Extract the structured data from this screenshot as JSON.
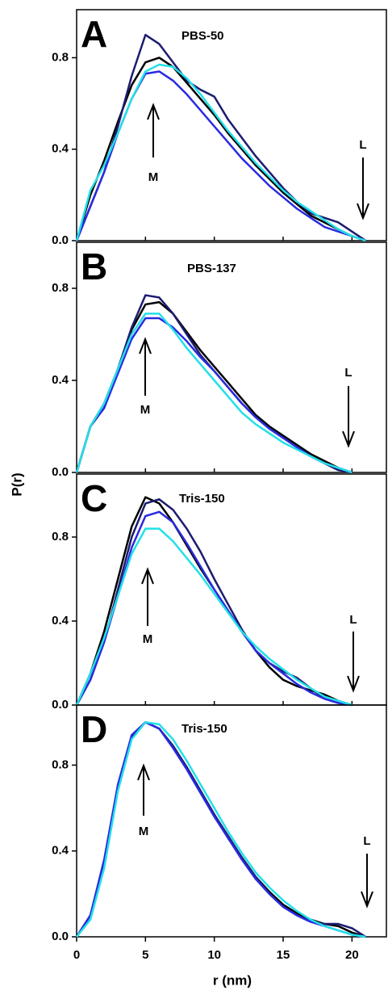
{
  "x_label": "r (nm)",
  "y_label": "P(r)",
  "chart_data": [
    {
      "type": "line",
      "panel": "A",
      "title": "PBS-50",
      "annotations": [
        "M",
        "L"
      ],
      "xlim": [
        0,
        22.5
      ],
      "xticks": [
        0,
        5,
        10,
        15,
        20
      ],
      "ylim": [
        0,
        1.01
      ],
      "yticks": [
        {
          "value": 0,
          "label": "0.0"
        },
        0.4,
        0.8
      ],
      "x": [
        0,
        1,
        2,
        3,
        4,
        5,
        6,
        7,
        8,
        9,
        10,
        11,
        12,
        13,
        14,
        15,
        16,
        17,
        18,
        19,
        20,
        21
      ],
      "series": [
        {
          "color": "#000000",
          "values": [
            0,
            0.2,
            0.35,
            0.52,
            0.68,
            0.78,
            0.8,
            0.76,
            0.69,
            0.62,
            0.55,
            0.47,
            0.4,
            0.33,
            0.27,
            0.21,
            0.16,
            0.11,
            0.08,
            0.05,
            0.02,
            0
          ]
        },
        {
          "color": "#1c1c70",
          "values": [
            0,
            0.15,
            0.3,
            0.5,
            0.72,
            0.9,
            0.86,
            0.78,
            0.7,
            0.66,
            0.63,
            0.53,
            0.45,
            0.37,
            0.3,
            0.23,
            0.17,
            0.12,
            0.1,
            0.08,
            0.04,
            0
          ]
        },
        {
          "color": "#2a2ae0",
          "values": [
            0,
            0.15,
            0.3,
            0.47,
            0.62,
            0.73,
            0.74,
            0.7,
            0.64,
            0.57,
            0.5,
            0.43,
            0.36,
            0.3,
            0.24,
            0.19,
            0.14,
            0.1,
            0.06,
            0.04,
            0.02,
            0
          ]
        },
        {
          "color": "#22e0e8",
          "values": [
            0,
            0.22,
            0.33,
            0.47,
            0.62,
            0.74,
            0.77,
            0.76,
            0.71,
            0.64,
            0.56,
            0.48,
            0.41,
            0.34,
            0.28,
            0.22,
            0.17,
            0.13,
            0.09,
            0.05,
            0.02,
            0
          ]
        }
      ]
    },
    {
      "type": "line",
      "panel": "B",
      "title": "PBS-137",
      "annotations": [
        "M",
        "L"
      ],
      "xlim": [
        0,
        22.5
      ],
      "xticks": [
        0,
        5,
        10,
        15,
        20
      ],
      "ylim": [
        0,
        1.0
      ],
      "yticks": [
        {
          "value": 0,
          "label": "0.0"
        },
        0.4,
        0.8
      ],
      "x": [
        0,
        1,
        2,
        3,
        4,
        5,
        6,
        7,
        8,
        9,
        10,
        11,
        12,
        13,
        14,
        15,
        16,
        17,
        18,
        19,
        20
      ],
      "series": [
        {
          "color": "#000000",
          "values": [
            0,
            0.2,
            0.3,
            0.45,
            0.62,
            0.73,
            0.74,
            0.69,
            0.61,
            0.53,
            0.46,
            0.39,
            0.32,
            0.25,
            0.2,
            0.16,
            0.12,
            0.08,
            0.05,
            0.02,
            0
          ]
        },
        {
          "color": "#1c1c70",
          "values": [
            0,
            0.2,
            0.28,
            0.45,
            0.63,
            0.77,
            0.76,
            0.69,
            0.6,
            0.51,
            0.44,
            0.37,
            0.3,
            0.24,
            0.19,
            0.15,
            0.11,
            0.07,
            0.04,
            0.01,
            0
          ]
        },
        {
          "color": "#2a2ae0",
          "values": [
            0,
            0.2,
            0.28,
            0.43,
            0.58,
            0.67,
            0.67,
            0.63,
            0.57,
            0.5,
            0.44,
            0.37,
            0.3,
            0.24,
            0.19,
            0.15,
            0.11,
            0.07,
            0.04,
            0.02,
            0
          ]
        },
        {
          "color": "#22e0e8",
          "values": [
            0,
            0.2,
            0.3,
            0.45,
            0.6,
            0.69,
            0.69,
            0.62,
            0.54,
            0.47,
            0.4,
            0.33,
            0.26,
            0.21,
            0.17,
            0.13,
            0.1,
            0.07,
            0.04,
            0.02,
            0
          ]
        }
      ]
    },
    {
      "type": "line",
      "panel": "C",
      "title": "Tris-150",
      "annotations": [
        "M",
        "L"
      ],
      "xlim": [
        0,
        22.5
      ],
      "xticks": [
        0,
        5,
        10,
        15,
        20
      ],
      "ylim": [
        0,
        1.1
      ],
      "yticks": [
        {
          "value": 0,
          "label": "0.0"
        },
        0.4,
        0.8
      ],
      "x": [
        0,
        1,
        2,
        3,
        4,
        5,
        6,
        7,
        8,
        9,
        10,
        11,
        12,
        13,
        14,
        15,
        16,
        17,
        18,
        19,
        20
      ],
      "series": [
        {
          "color": "#000000",
          "values": [
            0,
            0.15,
            0.35,
            0.6,
            0.85,
            0.99,
            0.96,
            0.87,
            0.76,
            0.65,
            0.55,
            0.45,
            0.35,
            0.26,
            0.18,
            0.12,
            0.09,
            0.07,
            0.05,
            0.02,
            0
          ]
        },
        {
          "color": "#1c1c70",
          "values": [
            0,
            0.12,
            0.3,
            0.55,
            0.8,
            0.96,
            0.98,
            0.93,
            0.84,
            0.73,
            0.6,
            0.48,
            0.36,
            0.26,
            0.2,
            0.16,
            0.13,
            0.08,
            0.03,
            0.01,
            0
          ]
        },
        {
          "color": "#2a2ae0",
          "values": [
            0,
            0.12,
            0.3,
            0.52,
            0.75,
            0.9,
            0.92,
            0.87,
            0.77,
            0.66,
            0.55,
            0.45,
            0.35,
            0.26,
            0.2,
            0.15,
            0.1,
            0.06,
            0.03,
            0.01,
            0
          ]
        },
        {
          "color": "#22e0e8",
          "values": [
            0,
            0.15,
            0.32,
            0.52,
            0.72,
            0.84,
            0.84,
            0.78,
            0.7,
            0.62,
            0.53,
            0.44,
            0.35,
            0.28,
            0.22,
            0.17,
            0.12,
            0.08,
            0.04,
            0.02,
            0
          ]
        }
      ]
    },
    {
      "type": "line",
      "panel": "D",
      "title": "Tris-150",
      "annotations": [
        "M",
        "L"
      ],
      "xlim": [
        0,
        22.5
      ],
      "xticks": [
        0,
        5,
        10,
        15,
        20
      ],
      "ylim": [
        0,
        1.08
      ],
      "yticks": [
        {
          "value": 0,
          "label": "0.0"
        },
        0.4,
        0.8
      ],
      "x": [
        0,
        1,
        2,
        3,
        4,
        5,
        6,
        7,
        8,
        9,
        10,
        11,
        12,
        13,
        14,
        15,
        16,
        17,
        18,
        19,
        20,
        21
      ],
      "series": [
        {
          "color": "#000000",
          "values": [
            0,
            0.1,
            0.35,
            0.7,
            0.93,
            1.0,
            0.97,
            0.89,
            0.79,
            0.68,
            0.57,
            0.46,
            0.37,
            0.28,
            0.21,
            0.15,
            0.11,
            0.08,
            0.06,
            0.05,
            0.02,
            0
          ]
        },
        {
          "color": "#1c1c70",
          "values": [
            0,
            0.1,
            0.35,
            0.7,
            0.93,
            1.0,
            0.97,
            0.89,
            0.79,
            0.68,
            0.57,
            0.47,
            0.37,
            0.28,
            0.2,
            0.14,
            0.1,
            0.07,
            0.06,
            0.06,
            0.04,
            0
          ]
        },
        {
          "color": "#2a2ae0",
          "values": [
            0,
            0.1,
            0.36,
            0.71,
            0.94,
            1.0,
            0.97,
            0.88,
            0.78,
            0.67,
            0.56,
            0.46,
            0.36,
            0.27,
            0.2,
            0.14,
            0.1,
            0.07,
            0.05,
            0.03,
            0.01,
            0
          ]
        },
        {
          "color": "#22e0e8",
          "values": [
            0,
            0.08,
            0.32,
            0.68,
            0.92,
            1.0,
            0.99,
            0.92,
            0.82,
            0.71,
            0.6,
            0.49,
            0.39,
            0.3,
            0.23,
            0.17,
            0.12,
            0.08,
            0.05,
            0.03,
            0.01,
            0
          ]
        }
      ]
    }
  ]
}
